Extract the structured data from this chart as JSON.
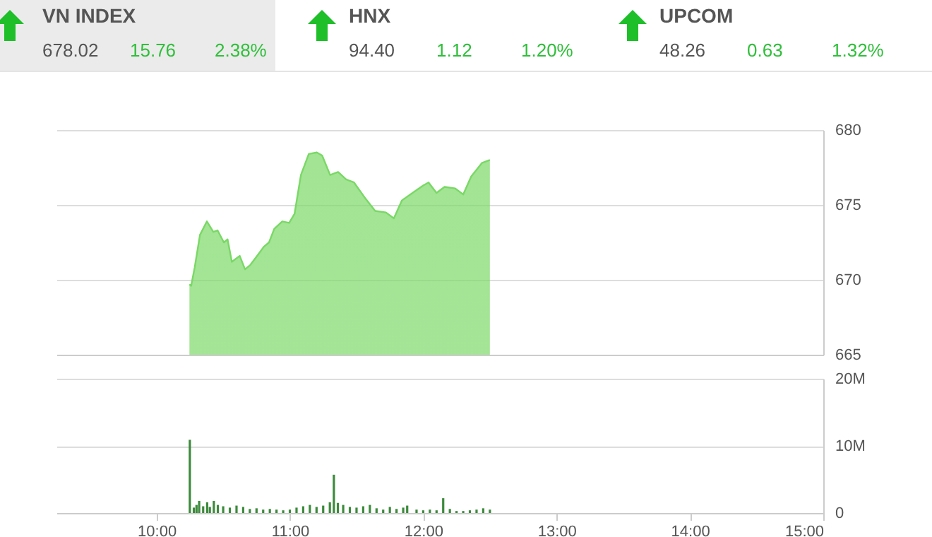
{
  "chart_data": [
    {
      "type": "other",
      "annotations": [
        "VN INDEX",
        "678.02",
        "15.76",
        "2.38%",
        "HNX",
        "94.40",
        "1.12",
        "1.20%",
        "UPCOM",
        "48.26",
        "0.63",
        "1.32%"
      ]
    },
    {
      "type": "area",
      "x": [
        10.247,
        10.26,
        10.286,
        10.326,
        10.378,
        10.426,
        10.458,
        10.505,
        10.533,
        10.565,
        10.624,
        10.664,
        10.704,
        10.763,
        10.804,
        10.844,
        10.883,
        10.943,
        10.995,
        11.035,
        11.083,
        11.142,
        11.202,
        11.242,
        11.302,
        11.362,
        11.422,
        11.481,
        11.561,
        11.64,
        11.72,
        11.78,
        11.84,
        11.92,
        12.0,
        12.04,
        12.1,
        12.16,
        12.24,
        12.3,
        12.36,
        12.44,
        12.5
      ],
      "series": [
        {
          "color": "#7ad866",
          "values": [
            669.7,
            669.6,
            670.8,
            673.0,
            673.9,
            673.2,
            673.3,
            672.5,
            672.7,
            671.2,
            671.6,
            670.7,
            671.0,
            671.7,
            672.2,
            672.5,
            673.4,
            673.9,
            673.8,
            674.4,
            677.0,
            678.4,
            678.5,
            678.3,
            677.0,
            677.2,
            676.7,
            676.5,
            675.5,
            674.6,
            674.5,
            674.1,
            675.3,
            675.8,
            676.3,
            676.5,
            675.8,
            676.2,
            676.1,
            675.7,
            676.9,
            677.8,
            678.0
          ]
        }
      ],
      "xlim": [
        9.25,
        15
      ],
      "ylim": [
        665,
        680
      ],
      "yticks": [
        665,
        670,
        675,
        680
      ],
      "grid": "y",
      "tick_labels": "y"
    },
    {
      "type": "bar",
      "x": [
        10.25,
        10.28,
        10.3,
        10.32,
        10.35,
        10.38,
        10.4,
        10.43,
        10.46,
        10.5,
        10.55,
        10.6,
        10.65,
        10.7,
        10.75,
        10.8,
        10.85,
        10.9,
        10.95,
        11.0,
        11.05,
        11.1,
        11.15,
        11.2,
        11.25,
        11.3,
        11.33,
        11.36,
        11.4,
        11.45,
        11.5,
        11.55,
        11.6,
        11.65,
        11.7,
        11.75,
        11.8,
        11.85,
        11.88,
        11.95,
        12.0,
        12.05,
        12.1,
        12.15,
        12.2,
        12.25,
        12.3,
        12.35,
        12.4,
        12.45,
        12.5
      ],
      "series": [
        {
          "color": "#3c8a3c",
          "values": [
            10.9,
            0.8,
            1.2,
            1.8,
            1.0,
            1.6,
            0.9,
            1.8,
            1.2,
            1.0,
            0.8,
            1.1,
            0.9,
            0.6,
            0.7,
            0.5,
            0.6,
            0.5,
            0.4,
            0.5,
            0.8,
            1.0,
            1.2,
            0.9,
            1.1,
            1.6,
            5.7,
            1.5,
            1.2,
            0.9,
            0.8,
            1.0,
            1.2,
            0.7,
            0.5,
            0.9,
            0.6,
            0.8,
            1.1,
            0.5,
            0.4,
            0.5,
            0.4,
            2.2,
            0.6,
            0.3,
            0.3,
            0.4,
            0.5,
            0.7,
            0.5
          ]
        }
      ],
      "xlim": [
        9.25,
        15
      ],
      "xticks": [
        {
          "value": 10,
          "label": "10:00"
        },
        {
          "value": 11,
          "label": "11:00"
        },
        {
          "value": 12,
          "label": "12:00"
        },
        {
          "value": 13,
          "label": "13:00"
        },
        {
          "value": 14,
          "label": "14:00"
        },
        {
          "value": 15,
          "label": "15:00"
        }
      ],
      "ylim": [
        0,
        20
      ],
      "yticks": [
        0,
        {
          "value": 10,
          "label": "10M"
        },
        {
          "value": 20,
          "label": "20M"
        }
      ],
      "grid": "y"
    }
  ]
}
